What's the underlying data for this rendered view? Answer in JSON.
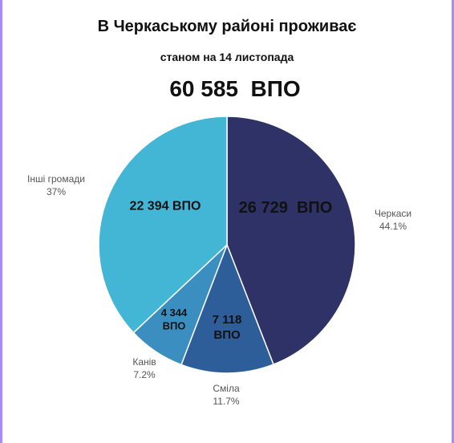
{
  "header": {
    "title": "В Черкаському районі проживає",
    "subtitle": "станом на 14 листопада",
    "total": "60 585  ВПО"
  },
  "chart_data": {
    "type": "pie",
    "slices": [
      {
        "name": "Черкаси",
        "percent": 44.1,
        "percent_label": "44.1%",
        "value_label": "26 729  ВПО",
        "color": "#2e3266"
      },
      {
        "name": "Сміла",
        "percent": 11.7,
        "percent_label": "11.7%",
        "value_label": "7 118 ВПО",
        "color": "#2e5e99"
      },
      {
        "name": "Канів",
        "percent": 7.2,
        "percent_label": "7.2%",
        "value_label": "4 344 ВПО",
        "color": "#3a8fc0"
      },
      {
        "name": "Інші громади",
        "percent": 37,
        "percent_label": "37%",
        "value_label": "22 394 ВПО",
        "color": "#43b6d6"
      }
    ]
  }
}
